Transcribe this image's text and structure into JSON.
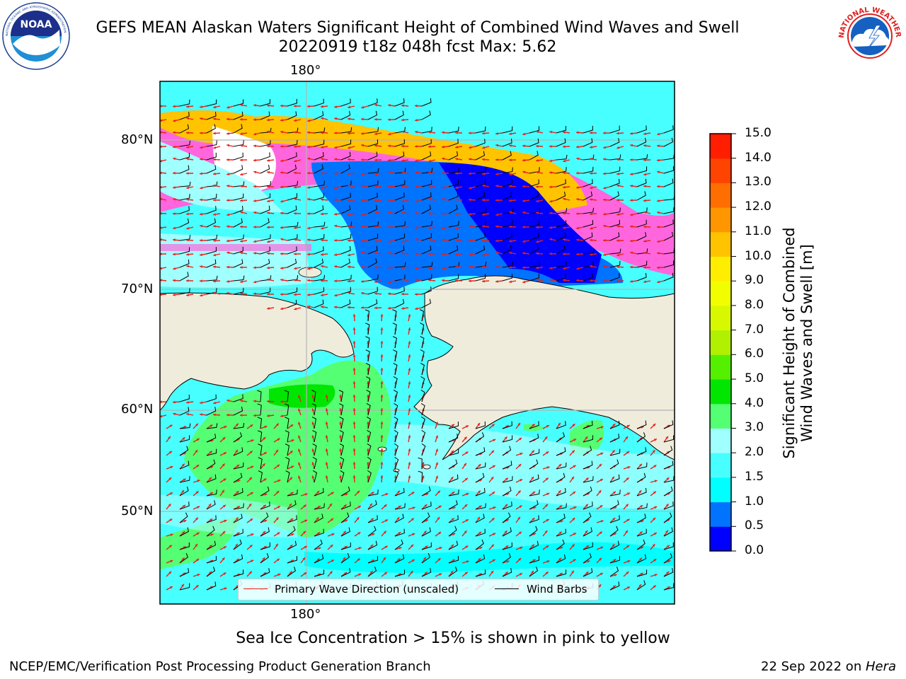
{
  "header": {
    "title_line1": "GEFS MEAN Alaskan Waters Significant Height of Combined Wind Waves and Swell",
    "title_line2": "20220919 t18z 048h fcst   Max: 5.62"
  },
  "logos": {
    "noaa": {
      "text": "NOAA",
      "ring_text": "NATIONAL OCEANIC AND ATMOSPHERIC ADMINISTRATION · U.S. DEPARTMENT OF COMMERCE"
    },
    "nws": {
      "ring_text": "NATIONAL WEATHER SERVICE"
    }
  },
  "map": {
    "lon_label_top": "180°",
    "lon_label_bottom": "180°",
    "lat_labels": [
      "80°N",
      "70°N",
      "60°N",
      "50°N"
    ],
    "colors": {
      "land": "#efecdc",
      "coast": "#000000",
      "grid": "#b3b3b3",
      "arrow": "#e8201a",
      "barb": "#000000"
    }
  },
  "colorbar": {
    "title_line1": "Significant Height of Combined",
    "title_line2": "Wind Waves and Swell [m]",
    "ticks": [
      "15.0",
      "14.0",
      "13.0",
      "12.0",
      "11.0",
      "10.0",
      "9.0",
      "8.0",
      "7.0",
      "6.0",
      "5.0",
      "4.0",
      "3.0",
      "2.0",
      "1.5",
      "1.0",
      "0.5",
      "0.0"
    ],
    "colors_bottom_to_top": [
      "#0000ff",
      "#0073ff",
      "#00ffff",
      "#48ffff",
      "#a0ffff",
      "#55ff73",
      "#00e600",
      "#55f000",
      "#b0f000",
      "#d8f800",
      "#f2fe00",
      "#ffee00",
      "#ffc300",
      "#ff9600",
      "#ff6e00",
      "#ff4300",
      "#ff1e00"
    ]
  },
  "legend": {
    "wave_label": "Primary Wave Direction (unscaled)",
    "barb_label": "Wind Barbs"
  },
  "footer": {
    "note": "Sea Ice Concentration > 15% is shown in pink to yellow",
    "left": "NCEP/EMC/Verification Post Processing Product Generation Branch",
    "date": "22 Sep 2022 on ",
    "host": "Hera"
  }
}
